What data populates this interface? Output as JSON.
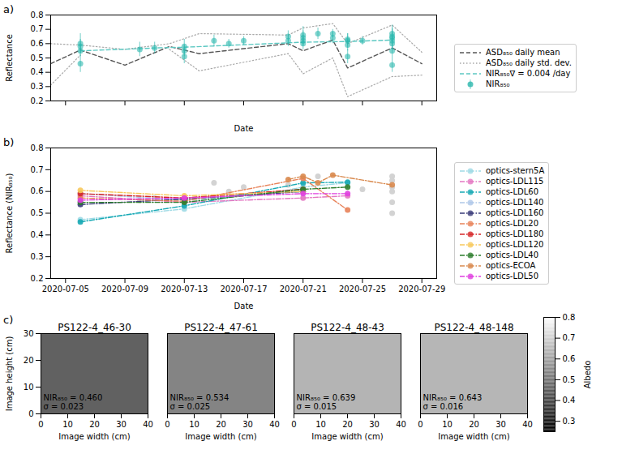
{
  "chart_data": [
    {
      "panel_label": "a)",
      "type": "scatter",
      "x_label": "Date",
      "y_label": "Reflectance",
      "xlim": [
        "2020-07-04",
        "2020-07-30"
      ],
      "xticks": [
        "2020-07-05",
        "2020-07-09",
        "2020-07-13",
        "2020-07-17",
        "2020-07-21",
        "2020-07-25",
        "2020-07-29"
      ],
      "ylim": [
        0.2,
        0.8
      ],
      "yticks": [
        0.2,
        0.3,
        0.4,
        0.5,
        0.6,
        0.7,
        0.8
      ],
      "tick_labels": "y",
      "legend": "right",
      "series": [
        {
          "name": "ASD₈₅₀ daily mean",
          "type": "line",
          "line_style": "dashed",
          "color": "#555555",
          "x": [
            "2020-07-04",
            "2020-07-06",
            "2020-07-09",
            "2020-07-12",
            "2020-07-14",
            "2020-07-20",
            "2020-07-21",
            "2020-07-23",
            "2020-07-24",
            "2020-07-27",
            "2020-07-29"
          ],
          "values": [
            0.46,
            0.555,
            0.45,
            0.58,
            0.53,
            0.6,
            0.55,
            0.625,
            0.43,
            0.57,
            0.46
          ]
        },
        {
          "name": "ASD₈₅₀ daily std. dev.",
          "type": "band",
          "line_style": "dotted",
          "color": "#a8a8a8",
          "x": [
            "2020-07-04",
            "2020-07-06",
            "2020-07-09",
            "2020-07-12",
            "2020-07-14",
            "2020-07-20",
            "2020-07-21",
            "2020-07-23",
            "2020-07-24",
            "2020-07-27",
            "2020-07-29"
          ],
          "low": [
            0.31,
            0.52,
            null,
            0.56,
            0.41,
            0.53,
            0.39,
            0.5,
            0.23,
            0.37,
            0.38
          ],
          "high": [
            0.6,
            0.59,
            0.56,
            0.6,
            0.67,
            0.66,
            0.71,
            0.74,
            0.6,
            0.73,
            0.54
          ]
        },
        {
          "name": "NIR₈₅₀∇ = 0.004 /day",
          "type": "line",
          "line_style": "dashed",
          "color": "#5cc8c2",
          "x": [
            "2020-07-06",
            "2020-07-10",
            "2020-07-11",
            "2020-07-13",
            "2020-07-21",
            "2020-07-24",
            "2020-07-27"
          ],
          "values": [
            0.55,
            0.565,
            0.57,
            0.575,
            0.61,
            0.615,
            0.625
          ]
        },
        {
          "name": "NIR₈₅₀",
          "type": "scatter",
          "marker": "circle",
          "color": "#2ab7ad",
          "x": [
            "2020-07-06",
            "2020-07-06",
            "2020-07-06",
            "2020-07-06",
            "2020-07-10",
            "2020-07-11",
            "2020-07-13",
            "2020-07-13",
            "2020-07-13",
            "2020-07-15",
            "2020-07-16",
            "2020-07-17",
            "2020-07-20",
            "2020-07-20",
            "2020-07-21",
            "2020-07-21",
            "2020-07-21",
            "2020-07-21",
            "2020-07-22",
            "2020-07-23",
            "2020-07-23",
            "2020-07-24",
            "2020-07-24",
            "2020-07-24",
            "2020-07-24",
            "2020-07-25",
            "2020-07-27",
            "2020-07-27",
            "2020-07-27",
            "2020-07-27",
            "2020-07-27",
            "2020-07-27",
            "2020-07-27"
          ],
          "values": [
            0.6,
            0.46,
            0.58,
            0.55,
            0.56,
            0.57,
            0.58,
            0.51,
            0.55,
            0.62,
            0.6,
            0.62,
            0.65,
            0.62,
            0.66,
            0.64,
            0.6,
            0.62,
            0.67,
            0.67,
            0.64,
            0.62,
            0.59,
            0.51,
            0.63,
            0.62,
            0.62,
            0.67,
            0.6,
            0.55,
            0.65,
            0.64,
            0.45
          ],
          "errors": [
            0.07,
            0.06,
            0.05,
            0.04,
            0.05,
            0.04,
            0.05,
            0.05,
            0.04,
            0.04,
            0.03,
            0.03,
            0.04,
            0.04,
            0.06,
            0.05,
            0.04,
            0.04,
            0.04,
            0.03,
            0.04,
            0.05,
            0.04,
            0.05,
            0.04,
            0.03,
            0.06,
            0.06,
            0.05,
            0.05,
            0.05,
            0.07,
            0.05
          ]
        }
      ]
    },
    {
      "panel_label": "b)",
      "type": "scatter",
      "x_label": "Date",
      "y_label": "Reflectance (NIR₈₅₀)",
      "xlim": [
        "2020-07-04",
        "2020-07-30"
      ],
      "xticks": [
        "2020-07-05",
        "2020-07-09",
        "2020-07-13",
        "2020-07-17",
        "2020-07-21",
        "2020-07-25",
        "2020-07-29"
      ],
      "ylim": [
        0.2,
        0.8
      ],
      "yticks": [
        0.2,
        0.3,
        0.4,
        0.5,
        0.6,
        0.7,
        0.8
      ],
      "legend": "right",
      "background_points": {
        "color": "#d3d3d3",
        "x": [
          "2020-07-10",
          "2020-07-11",
          "2020-07-15",
          "2020-07-16",
          "2020-07-17",
          "2020-07-20",
          "2020-07-22",
          "2020-07-25",
          "2020-07-27",
          "2020-07-27",
          "2020-07-27",
          "2020-07-27",
          "2020-07-27",
          "2020-07-27"
        ],
        "values": [
          0.56,
          0.57,
          0.64,
          0.6,
          0.62,
          0.63,
          0.67,
          0.61,
          0.67,
          0.65,
          0.62,
          0.6,
          0.55,
          0.5
        ]
      },
      "series": [
        {
          "name": "optics-stern5A",
          "color": "#9edae5",
          "line_style": "dashdot",
          "marker": "circle",
          "x": [
            "2020-07-06",
            "2020-07-13",
            "2020-07-21",
            "2020-07-24"
          ],
          "values": [
            0.47,
            0.52,
            0.62,
            0.64
          ]
        },
        {
          "name": "optics-LDL115",
          "color": "#e377c2",
          "line_style": "dashdot",
          "marker": "circle",
          "x": [
            "2020-07-06",
            "2020-07-13",
            "2020-07-21",
            "2020-07-24"
          ],
          "values": [
            0.58,
            0.55,
            0.57,
            0.58
          ]
        },
        {
          "name": "optics-LDL60",
          "color": "#17a9b4",
          "line_style": "dashdot",
          "marker": "circle",
          "x": [
            "2020-07-06",
            "2020-07-13",
            "2020-07-21",
            "2020-07-24"
          ],
          "values": [
            0.46,
            0.534,
            0.639,
            0.643
          ]
        },
        {
          "name": "optics-LDL140",
          "color": "#aec7e8",
          "line_style": "dashdot",
          "marker": "circle",
          "x": [
            "2020-07-06",
            "2020-07-13",
            "2020-07-21"
          ],
          "values": [
            0.59,
            0.56,
            0.6
          ]
        },
        {
          "name": "optics-LDL160",
          "color": "#393b79",
          "line_style": "dashdot",
          "marker": "circle",
          "x": [
            "2020-07-06",
            "2020-07-13",
            "2020-07-21"
          ],
          "values": [
            0.54,
            0.565,
            0.6
          ]
        },
        {
          "name": "optics-LDL20",
          "color": "#e8835a",
          "line_style": "dashdot",
          "marker": "circle",
          "x": [
            "2020-07-06",
            "2020-07-13",
            "2020-07-21",
            "2020-07-24"
          ],
          "values": [
            0.57,
            0.555,
            0.66,
            0.515
          ]
        },
        {
          "name": "optics-LDL180",
          "color": "#d62728",
          "line_style": "dashdot",
          "marker": "circle",
          "x": [
            "2020-07-06",
            "2020-07-13",
            "2020-07-21"
          ],
          "values": [
            0.59,
            0.57,
            0.61
          ]
        },
        {
          "name": "optics-LDL120",
          "color": "#f7c95c",
          "line_style": "dashdot",
          "marker": "circle",
          "x": [
            "2020-07-06",
            "2020-07-13",
            "2020-07-21"
          ],
          "values": [
            0.605,
            0.58,
            0.6
          ]
        },
        {
          "name": "optics-LDL40",
          "color": "#2d7d2d",
          "line_style": "dashdot",
          "marker": "circle",
          "x": [
            "2020-07-06",
            "2020-07-13",
            "2020-07-21",
            "2020-07-24"
          ],
          "values": [
            0.55,
            0.55,
            0.61,
            0.62
          ]
        },
        {
          "name": "optics-ECOA",
          "color": "#d98a4f",
          "line_style": "dashdot",
          "marker": "circle",
          "x": [
            "2020-07-20",
            "2020-07-21",
            "2020-07-22",
            "2020-07-23",
            "2020-07-27"
          ],
          "values": [
            0.655,
            0.67,
            0.64,
            0.675,
            0.63
          ]
        },
        {
          "name": "optics-LDL50",
          "color": "#e040e0",
          "line_style": "dashdot",
          "marker": "circle",
          "x": [
            "2020-07-06",
            "2020-07-13",
            "2020-07-21",
            "2020-07-24"
          ],
          "values": [
            0.56,
            0.57,
            0.59,
            0.59
          ]
        }
      ]
    },
    {
      "panel_label": "c)",
      "type": "image",
      "x_label": "Image width (cm)",
      "y_label": "Image height (cm)",
      "xlim": [
        0,
        40
      ],
      "xticks": [
        0,
        10,
        20,
        30,
        40
      ],
      "ylim": [
        0,
        30
      ],
      "yticks": [
        0,
        10,
        20,
        30
      ],
      "colorbar": {
        "label": "Albedo",
        "range": [
          0.25,
          0.8
        ],
        "ticks": [
          0.3,
          0.4,
          0.5,
          0.6,
          0.7,
          0.8
        ]
      },
      "images": [
        {
          "title": "PS122-4_46-30",
          "value": 0.46,
          "label": "NIR₈₅₀ = 0.460",
          "sigma_label": "σ = 0.023"
        },
        {
          "title": "PS122-4_47-61",
          "value": 0.534,
          "label": "NIR₈₅₀ = 0.534",
          "sigma_label": "σ = 0.025"
        },
        {
          "title": "PS122-4_48-43",
          "value": 0.639,
          "label": "NIR₈₅₀ = 0.639",
          "sigma_label": "σ = 0.015"
        },
        {
          "title": "PS122-4_48-148",
          "value": 0.643,
          "label": "NIR₈₅₀ = 0.643",
          "sigma_label": "σ = 0.016"
        }
      ]
    }
  ]
}
